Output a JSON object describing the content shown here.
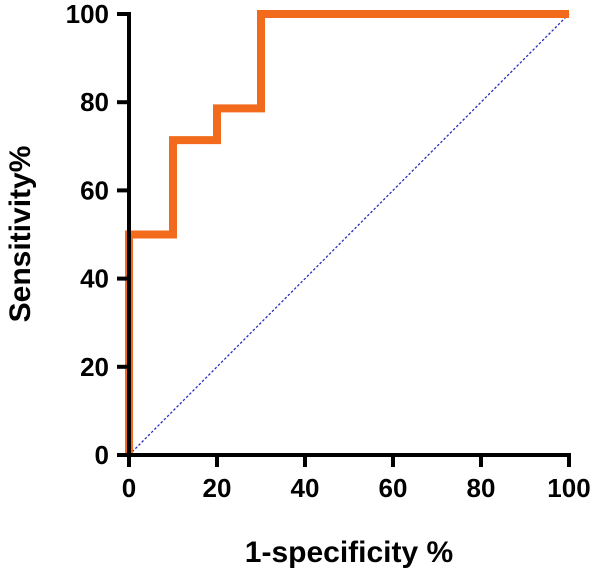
{
  "chart_data": {
    "type": "line",
    "title": "",
    "xlabel": "1-specificity %",
    "ylabel": "Sensitivity%",
    "xlim": [
      0,
      100
    ],
    "ylim": [
      0,
      100
    ],
    "x_ticks": [
      "0",
      "20",
      "40",
      "60",
      "80",
      "100"
    ],
    "y_ticks": [
      "0",
      "20",
      "40",
      "60",
      "80",
      "100"
    ],
    "grid": false,
    "legend": "none",
    "series": [
      {
        "kind": "roc-step",
        "color": "#f26b1d",
        "x": [
          0,
          0,
          10,
          10,
          20,
          20,
          30,
          30,
          100
        ],
        "y": [
          0,
          50,
          50,
          71.4,
          71.4,
          78.6,
          78.6,
          100,
          100
        ]
      },
      {
        "kind": "reference-diagonal",
        "color": "#2b2bbf",
        "style": "dotted",
        "x": [
          0,
          100
        ],
        "y": [
          0,
          100
        ]
      }
    ]
  }
}
